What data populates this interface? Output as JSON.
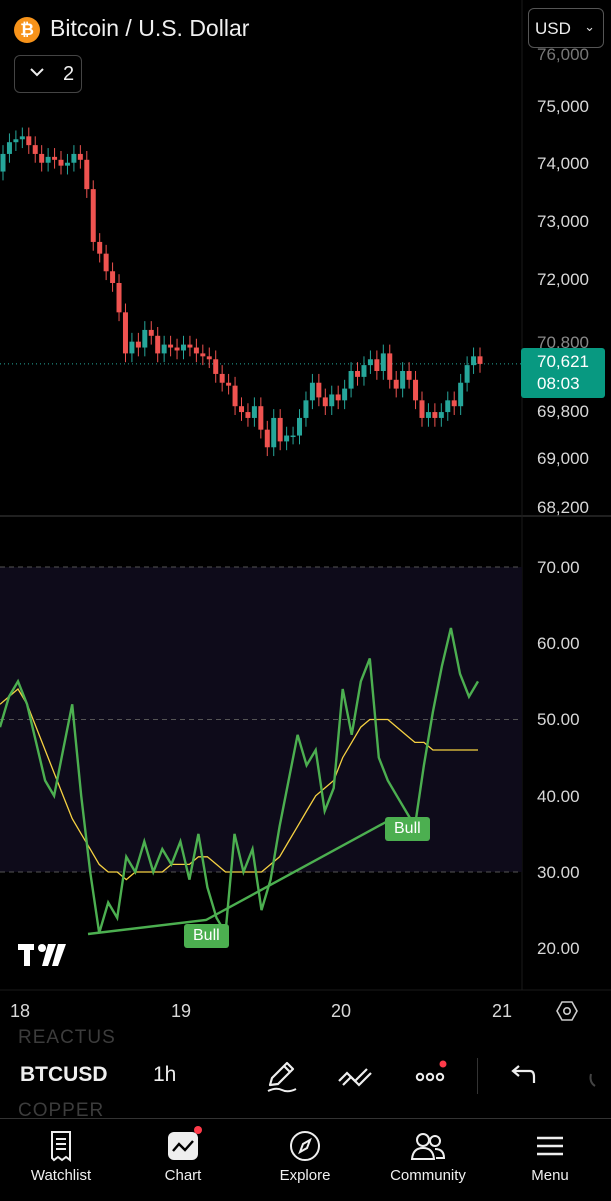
{
  "header": {
    "title": "Bitcoin / U.S. Dollar",
    "logo_letter": "₿",
    "currency": "USD",
    "indicators_count": "2"
  },
  "colors": {
    "up": "#26a69a",
    "down": "#ef5350",
    "rsi_line": "#4caf50",
    "rsi_ma": "#f5d142",
    "price_tag": "#089981",
    "accent_dot": "#ff3b4a"
  },
  "price_axis": {
    "labels": [
      "76,000",
      "75,000",
      "74,000",
      "73,000",
      "72,000",
      "70,800",
      "69,800",
      "69,000",
      "68,200"
    ],
    "current_price": "70,621",
    "countdown": "08:03"
  },
  "oscillator_axis": {
    "labels": [
      "70.00",
      "60.00",
      "50.00",
      "40.00",
      "30.00",
      "20.00"
    ]
  },
  "time_axis": {
    "labels": [
      "18",
      "19",
      "20",
      "21"
    ]
  },
  "chart_data": {
    "type": "candlestick",
    "symbol": "BTCUSD",
    "interval": "1h",
    "price_range": [
      68200,
      76000
    ],
    "closes": [
      74200,
      74400,
      74450,
      74500,
      74350,
      74200,
      74050,
      74150,
      74100,
      74000,
      74050,
      74200,
      74100,
      73600,
      72700,
      72500,
      72200,
      72000,
      71500,
      70800,
      71000,
      70900,
      71200,
      71100,
      70800,
      70950,
      70900,
      70850,
      70950,
      70900,
      70800,
      70750,
      70700,
      70450,
      70300,
      70250,
      69900,
      69800,
      69700,
      69900,
      69500,
      69200,
      69700,
      69300,
      69400,
      69400,
      69700,
      70000,
      70300,
      70050,
      69900,
      70100,
      70000,
      70200,
      70500,
      70400,
      70600,
      70700,
      70500,
      70800,
      70350,
      70200,
      70500,
      70350,
      70000,
      69700,
      69800,
      69700,
      69800,
      70000,
      69900,
      70300,
      70600,
      70750,
      70621
    ],
    "opens": [
      73900,
      74200,
      74400,
      74450,
      74500,
      74350,
      74200,
      74050,
      74150,
      74100,
      74000,
      74050,
      74200,
      74100,
      73600,
      72700,
      72500,
      72200,
      72000,
      71500,
      70800,
      71000,
      70900,
      71200,
      71100,
      70800,
      70950,
      70900,
      70850,
      70950,
      70900,
      70800,
      70750,
      70700,
      70450,
      70300,
      70250,
      69900,
      69800,
      69700,
      69900,
      69500,
      69200,
      69700,
      69300,
      69400,
      69400,
      69700,
      70000,
      70300,
      70050,
      69900,
      70100,
      70000,
      70200,
      70500,
      70400,
      70600,
      70700,
      70500,
      70800,
      70350,
      70200,
      70500,
      70350,
      70000,
      69700,
      69800,
      69700,
      69800,
      70000,
      69900,
      70300,
      70600,
      70750
    ],
    "rsi": {
      "values": [
        49,
        53,
        55,
        52,
        47,
        42,
        40,
        46,
        52,
        40,
        30,
        22,
        26,
        24,
        32,
        30,
        34,
        30,
        33,
        31,
        34,
        29,
        35,
        28,
        24,
        22,
        35,
        30,
        33,
        25,
        29,
        36,
        42,
        48,
        44,
        46,
        38,
        41,
        54,
        48,
        55,
        58,
        45,
        42,
        40,
        38,
        36,
        44,
        51,
        57,
        62,
        56,
        53,
        55
      ],
      "ma": [
        52,
        53,
        54,
        52,
        49,
        46,
        43,
        40,
        37,
        35,
        33,
        31,
        30,
        30,
        29,
        30,
        30,
        30,
        30,
        31,
        31,
        31,
        32,
        32,
        31,
        30,
        30,
        30,
        30,
        30,
        31,
        32,
        34,
        36,
        38,
        40,
        41,
        42,
        45,
        47,
        49,
        50,
        50,
        50,
        49,
        48,
        47,
        47,
        46,
        46,
        46,
        46,
        46,
        46
      ],
      "scale": [
        20,
        70
      ],
      "divergence_labels": [
        "Bull",
        "Bull"
      ]
    }
  },
  "toolbar": {
    "symbol": "BTCUSD",
    "interval": "1h",
    "ghost_above": "REACTUS",
    "ghost_below": "COPPER"
  },
  "nav": {
    "watchlist": "Watchlist",
    "chart": "Chart",
    "explore": "Explore",
    "community": "Community",
    "menu": "Menu"
  }
}
